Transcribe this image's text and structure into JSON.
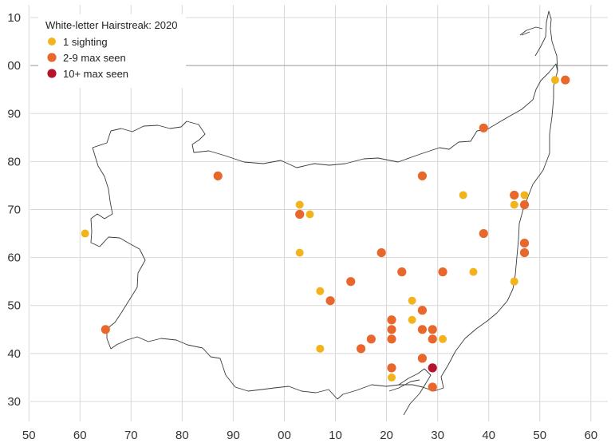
{
  "chart_data": {
    "type": "scatter",
    "title": "White-letter Hairstreak:  2020",
    "x_ticks": [
      "50",
      "60",
      "70",
      "80",
      "90",
      "00",
      "10",
      "20",
      "30",
      "40",
      "50",
      "60"
    ],
    "y_ticks": [
      "30",
      "40",
      "50",
      "60",
      "70",
      "80",
      "90",
      "00",
      "10"
    ],
    "x_grid": [
      50,
      60,
      70,
      80,
      90,
      100,
      110,
      120,
      130,
      140,
      150,
      160
    ],
    "y_grid": [
      30,
      40,
      50,
      60,
      70,
      80,
      90,
      100,
      110
    ],
    "xlim": [
      47,
      163
    ],
    "ylim": [
      27,
      112
    ],
    "grid": true,
    "legend_position": "top-left",
    "series": [
      {
        "name": "1 sighting",
        "color": "#f2b41c",
        "points": [
          [
            61,
            65
          ],
          [
            103,
            71
          ],
          [
            103,
            61
          ],
          [
            105,
            69
          ],
          [
            107,
            53
          ],
          [
            107,
            41
          ],
          [
            121,
            35
          ],
          [
            125,
            51
          ],
          [
            125,
            47
          ],
          [
            131,
            43
          ],
          [
            135,
            73
          ],
          [
            137,
            57
          ],
          [
            145,
            71
          ],
          [
            145,
            55
          ],
          [
            147,
            73
          ],
          [
            153,
            97
          ]
        ]
      },
      {
        "name": "2-9 max seen",
        "color": "#e8672c",
        "points": [
          [
            65,
            45
          ],
          [
            87,
            77
          ],
          [
            103,
            69
          ],
          [
            109,
            51
          ],
          [
            113,
            55
          ],
          [
            115,
            41
          ],
          [
            117,
            43
          ],
          [
            119,
            61
          ],
          [
            121,
            47
          ],
          [
            121,
            45
          ],
          [
            121,
            43
          ],
          [
            121,
            37
          ],
          [
            123,
            57
          ],
          [
            127,
            77
          ],
          [
            127,
            49
          ],
          [
            127,
            45
          ],
          [
            127,
            39
          ],
          [
            129,
            45
          ],
          [
            129,
            43
          ],
          [
            129,
            33
          ],
          [
            131,
            57
          ],
          [
            139,
            87
          ],
          [
            139,
            65
          ],
          [
            145,
            73
          ],
          [
            147,
            71
          ],
          [
            147,
            63
          ],
          [
            147,
            61
          ],
          [
            155,
            97
          ]
        ]
      },
      {
        "name": "10+ max seen",
        "color": "#b5152b",
        "points": [
          [
            129,
            37
          ]
        ]
      }
    ]
  }
}
